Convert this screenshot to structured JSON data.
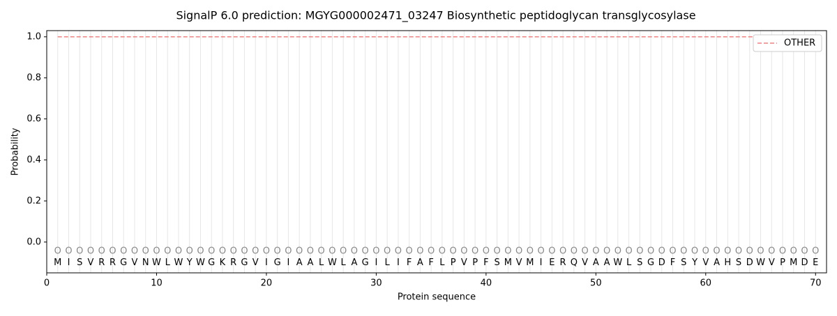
{
  "chart_data": {
    "type": "line",
    "title": "SignalP 6.0 prediction: MGYG000002471_03247 Biosynthetic peptidoglycan transglycosylase",
    "x_label": "Protein sequence",
    "y_label": "Probability",
    "x": [
      1,
      2,
      3,
      4,
      5,
      6,
      7,
      8,
      9,
      10,
      11,
      12,
      13,
      14,
      15,
      16,
      17,
      18,
      19,
      20,
      21,
      22,
      23,
      24,
      25,
      26,
      27,
      28,
      29,
      30,
      31,
      32,
      33,
      34,
      35,
      36,
      37,
      38,
      39,
      40,
      41,
      42,
      43,
      44,
      45,
      46,
      47,
      48,
      49,
      50,
      51,
      52,
      53,
      54,
      55,
      56,
      57,
      58,
      59,
      60,
      61,
      62,
      63,
      64,
      65,
      66,
      67,
      68,
      69,
      70
    ],
    "residues": [
      "M",
      "I",
      "S",
      "V",
      "R",
      "R",
      "G",
      "V",
      "N",
      "W",
      "L",
      "W",
      "Y",
      "W",
      "G",
      "K",
      "R",
      "G",
      "V",
      "I",
      "G",
      "I",
      "A",
      "A",
      "L",
      "W",
      "L",
      "A",
      "G",
      "I",
      "L",
      "I",
      "F",
      "A",
      "F",
      "L",
      "P",
      "V",
      "P",
      "F",
      "S",
      "M",
      "V",
      "M",
      "I",
      "E",
      "R",
      "Q",
      "V",
      "A",
      "A",
      "W",
      "L",
      "S",
      "G",
      "D",
      "F",
      "S",
      "Y",
      "V",
      "A",
      "H",
      "S",
      "D",
      "W",
      "V",
      "P",
      "M",
      "D",
      "E"
    ],
    "predicted_labels": [
      "O",
      "O",
      "O",
      "O",
      "O",
      "O",
      "O",
      "O",
      "O",
      "O",
      "O",
      "O",
      "O",
      "O",
      "O",
      "O",
      "O",
      "O",
      "O",
      "O",
      "O",
      "O",
      "O",
      "O",
      "O",
      "O",
      "O",
      "O",
      "O",
      "O",
      "O",
      "O",
      "O",
      "O",
      "O",
      "O",
      "O",
      "O",
      "O",
      "O",
      "O",
      "O",
      "O",
      "O",
      "O",
      "O",
      "O",
      "O",
      "O",
      "O",
      "O",
      "O",
      "O",
      "O",
      "O",
      "O",
      "O",
      "O",
      "O",
      "O",
      "O",
      "O",
      "O",
      "O",
      "O",
      "O",
      "O",
      "O",
      "O",
      "O"
    ],
    "series": [
      {
        "name": "OTHER",
        "color": "#f08080",
        "dash": true,
        "values": [
          1,
          1,
          1,
          1,
          1,
          1,
          1,
          1,
          1,
          1,
          1,
          1,
          1,
          1,
          1,
          1,
          1,
          1,
          1,
          1,
          1,
          1,
          1,
          1,
          1,
          1,
          1,
          1,
          1,
          1,
          1,
          1,
          1,
          1,
          1,
          1,
          1,
          1,
          1,
          1,
          1,
          1,
          1,
          1,
          1,
          1,
          1,
          1,
          1,
          1,
          1,
          1,
          1,
          1,
          1,
          1,
          1,
          1,
          1,
          1,
          1,
          1,
          1,
          1,
          1,
          1,
          1,
          1,
          1,
          1
        ]
      }
    ],
    "xlim": [
      0,
      71
    ],
    "xticks": [
      0,
      10,
      20,
      30,
      40,
      50,
      60,
      70
    ],
    "ylim": [
      -0.15,
      1.03
    ],
    "yticks": [
      {
        "value": 0,
        "label": "0.0"
      },
      {
        "value": 0.2,
        "label": "0.2"
      },
      {
        "value": 0.4,
        "label": "0.4"
      },
      {
        "value": 0.6,
        "label": "0.6"
      },
      {
        "value": 0.8,
        "label": "0.8"
      },
      {
        "value": 1,
        "label": "1.0"
      }
    ],
    "legend": "upper right"
  }
}
